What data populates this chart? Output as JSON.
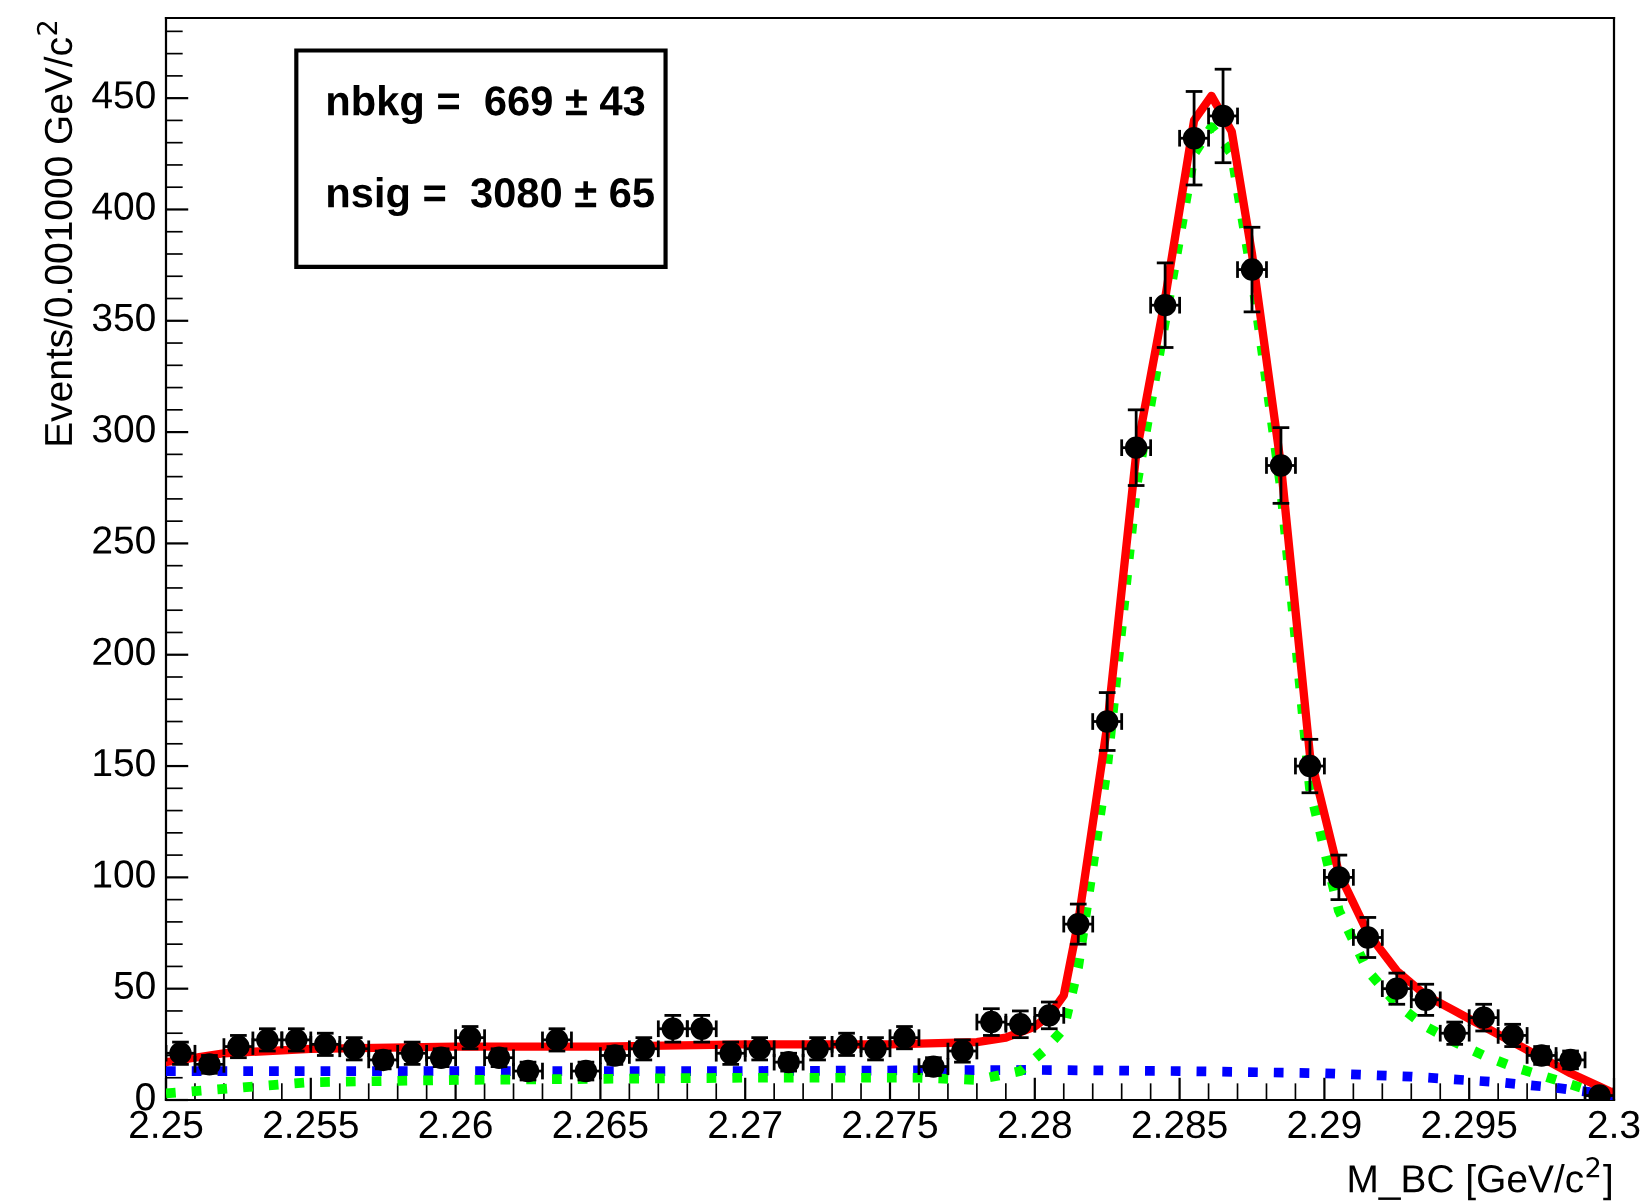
{
  "chart_data": {
    "type": "scatter",
    "xlabel": "M_BC [GeV/c$^{2}$]",
    "ylabel": "Events/0.001000 GeV/c$^{2}$",
    "annotations": [
      "nbkg =  669 ± 43",
      "nsig =  3080 ± 65"
    ],
    "xlim": [
      2.25,
      2.3
    ],
    "xticks": [
      {
        "value": 2.25,
        "label": "2.25"
      },
      {
        "value": 2.255,
        "label": "2.255"
      },
      {
        "value": 2.26,
        "label": "2.26"
      },
      {
        "value": 2.265,
        "label": "2.265"
      },
      {
        "value": 2.27,
        "label": "2.27"
      },
      {
        "value": 2.275,
        "label": "2.275"
      },
      {
        "value": 2.28,
        "label": "2.28"
      },
      {
        "value": 2.285,
        "label": "2.285"
      },
      {
        "value": 2.29,
        "label": "2.29"
      },
      {
        "value": 2.295,
        "label": "2.295"
      },
      {
        "value": 2.3,
        "label": "2.3"
      }
    ],
    "ylim": [
      0,
      486
    ],
    "yticks": [
      0,
      50,
      100,
      150,
      200,
      250,
      300,
      350,
      400,
      450
    ],
    "grid": false,
    "legend": false,
    "series": [
      {
        "type": "scatter",
        "color": "#000000",
        "marker": "circle",
        "x": [
          2.2505,
          2.2515,
          2.2525,
          2.2535,
          2.2545,
          2.2555,
          2.2565,
          2.2575,
          2.2585,
          2.2595,
          2.2605,
          2.2615,
          2.2625,
          2.2635,
          2.2645,
          2.2655,
          2.2665,
          2.2675,
          2.2685,
          2.2695,
          2.2705,
          2.2715,
          2.2725,
          2.2735,
          2.2745,
          2.2755,
          2.2765,
          2.2775,
          2.2785,
          2.2795,
          2.2805,
          2.2815,
          2.2825,
          2.2835,
          2.2845,
          2.2855,
          2.2865,
          2.2875,
          2.2885,
          2.2895,
          2.2905,
          2.2915,
          2.2925,
          2.2935,
          2.2945,
          2.2955,
          2.2965,
          2.2975,
          2.2985,
          2.2995
        ],
        "values": [
          21,
          16,
          24,
          27,
          27,
          25,
          23,
          18,
          21,
          19,
          28,
          19,
          13,
          27,
          13,
          20,
          23,
          32,
          32,
          21,
          23,
          17,
          23,
          25,
          23,
          28,
          15,
          22,
          35,
          34,
          38,
          79,
          170,
          293,
          357,
          432,
          442,
          373,
          285,
          150,
          100,
          73,
          50,
          45,
          30,
          37,
          29,
          20,
          18,
          2
        ],
        "errors": [
          5,
          4,
          5,
          5,
          5,
          5,
          5,
          4,
          5,
          4,
          5,
          4,
          4,
          5,
          4,
          4,
          5,
          6,
          6,
          5,
          5,
          4,
          5,
          5,
          5,
          5,
          4,
          5,
          6,
          6,
          6,
          9,
          13,
          17,
          19,
          21,
          21,
          19,
          17,
          12,
          10,
          9,
          7,
          7,
          5,
          6,
          5,
          4,
          4,
          1
        ],
        "xerrors": [
          0.0005,
          0.0005,
          0.0005,
          0.0005,
          0.0005,
          0.0005,
          0.0005,
          0.0005,
          0.0005,
          0.0005,
          0.0005,
          0.0005,
          0.0005,
          0.0005,
          0.0005,
          0.0005,
          0.0005,
          0.0005,
          0.0005,
          0.0005,
          0.0005,
          0.0005,
          0.0005,
          0.0005,
          0.0005,
          0.0005,
          0.0005,
          0.0005,
          0.0005,
          0.0005,
          0.0005,
          0.0005,
          0.0005,
          0.0005,
          0.0005,
          0.0005,
          0.0005,
          0.0005,
          0.0005,
          0.0005,
          0.0005,
          0.0005,
          0.0005,
          0.0005,
          0.0005,
          0.0005,
          0.0005,
          0.0005,
          0.0005,
          0.0005
        ]
      },
      {
        "type": "line",
        "color": "#0000ff",
        "line_style": "dotted",
        "marker": "none",
        "x": [
          2.25,
          2.26,
          2.27,
          2.28,
          2.285,
          2.29,
          2.293,
          2.296,
          2.298,
          2.2995,
          2.3
        ],
        "values": [
          13,
          13,
          13,
          13.5,
          13,
          12,
          10.5,
          8,
          5.5,
          3,
          1.5
        ]
      },
      {
        "type": "line",
        "color": "#00ff00",
        "line_style": "dotted",
        "marker": "none",
        "x": [
          2.25,
          2.252,
          2.255,
          2.26,
          2.27,
          2.276,
          2.278,
          2.2795,
          2.2803,
          2.281,
          2.2815,
          2.2825,
          2.2835,
          2.2845,
          2.2855,
          2.2861,
          2.2868,
          2.2875,
          2.2885,
          2.2895,
          2.2905,
          2.2915,
          2.2925,
          2.2935,
          2.2945,
          2.2955,
          2.2965,
          2.2975,
          2.2985,
          2.2995,
          2.3
        ],
        "values": [
          3,
          5,
          8,
          9,
          10,
          10,
          9,
          13,
          22,
          32,
          60,
          150,
          275,
          350,
          425,
          437,
          425,
          370,
          275,
          140,
          85,
          58,
          43,
          33,
          26,
          20,
          15,
          11,
          7,
          3,
          2
        ]
      },
      {
        "type": "line",
        "color": "#ff0000",
        "line_style": "solid",
        "marker": "none",
        "x": [
          2.25,
          2.252,
          2.255,
          2.26,
          2.265,
          2.27,
          2.275,
          2.278,
          2.279,
          2.28,
          2.2805,
          2.281,
          2.2815,
          2.2825,
          2.2835,
          2.2845,
          2.2855,
          2.2861,
          2.2868,
          2.2875,
          2.2885,
          2.2895,
          2.2905,
          2.2915,
          2.2925,
          2.2935,
          2.2945,
          2.2955,
          2.2965,
          2.2975,
          2.2985,
          2.2995,
          2.3
        ],
        "values": [
          17,
          21,
          23,
          24,
          24,
          25,
          25,
          26,
          28,
          33,
          38,
          47,
          80,
          168,
          290,
          360,
          440,
          451,
          435,
          380,
          285,
          155,
          102,
          75,
          58,
          47,
          40,
          33,
          26,
          19,
          12,
          6,
          3
        ]
      }
    ]
  }
}
